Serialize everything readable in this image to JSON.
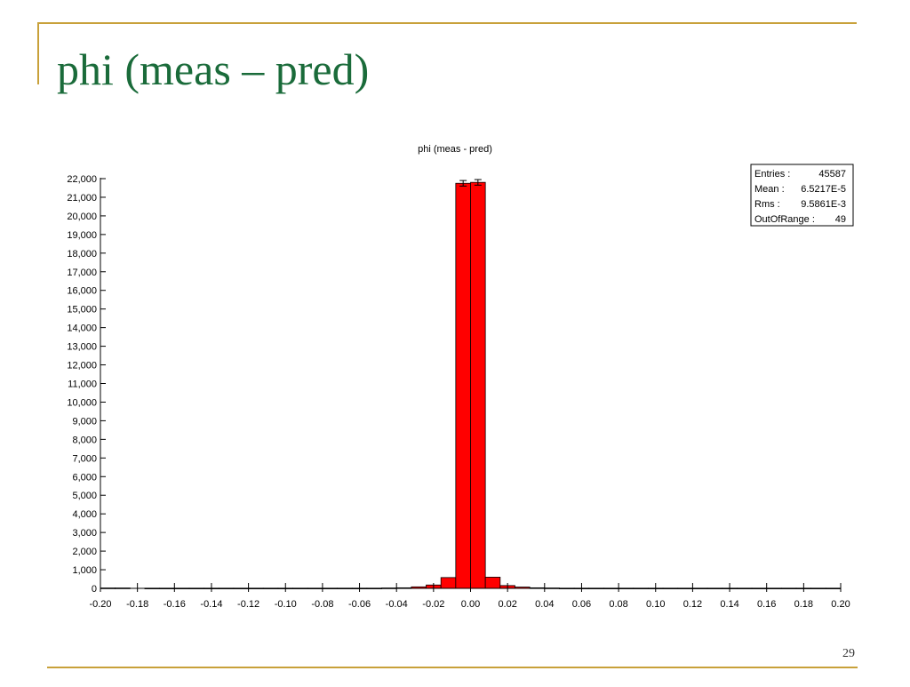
{
  "slide": {
    "title": "phi (meas – pred)",
    "page_number": "29"
  },
  "colors": {
    "accent": "#c8a13a",
    "title": "#1a6b3a",
    "bar": "#ff0000"
  },
  "chart_data": {
    "type": "bar",
    "title": "phi (meas - pred)",
    "xlabel": "",
    "ylabel": "",
    "xlim": [
      -0.2,
      0.2
    ],
    "ylim": [
      0,
      22000
    ],
    "grid": false,
    "bin_width": 0.008,
    "bins": [
      {
        "x0": -0.2,
        "x1": -0.192,
        "value": 20
      },
      {
        "x0": -0.192,
        "x1": -0.184,
        "value": 20
      },
      {
        "x0": -0.176,
        "x1": -0.168,
        "value": 10
      },
      {
        "x0": -0.168,
        "x1": -0.16,
        "value": 10
      },
      {
        "x0": -0.16,
        "x1": -0.152,
        "value": 10
      },
      {
        "x0": -0.152,
        "x1": -0.144,
        "value": 10
      },
      {
        "x0": -0.144,
        "x1": -0.136,
        "value": 10
      },
      {
        "x0": -0.136,
        "x1": -0.128,
        "value": 10
      },
      {
        "x0": -0.128,
        "x1": -0.12,
        "value": 10
      },
      {
        "x0": -0.12,
        "x1": -0.112,
        "value": 10
      },
      {
        "x0": -0.112,
        "x1": -0.104,
        "value": 10
      },
      {
        "x0": -0.104,
        "x1": -0.096,
        "value": 10
      },
      {
        "x0": -0.096,
        "x1": -0.088,
        "value": 10
      },
      {
        "x0": -0.088,
        "x1": -0.08,
        "value": 10
      },
      {
        "x0": -0.08,
        "x1": -0.072,
        "value": 10
      },
      {
        "x0": -0.072,
        "x1": -0.064,
        "value": 10
      },
      {
        "x0": -0.064,
        "x1": -0.056,
        "value": 10
      },
      {
        "x0": -0.056,
        "x1": -0.048,
        "value": 10
      },
      {
        "x0": -0.048,
        "x1": -0.04,
        "value": 20
      },
      {
        "x0": -0.04,
        "x1": -0.032,
        "value": 30
      },
      {
        "x0": -0.032,
        "x1": -0.024,
        "value": 80
      },
      {
        "x0": -0.024,
        "x1": -0.016,
        "value": 180
      },
      {
        "x0": -0.016,
        "x1": -0.008,
        "value": 580
      },
      {
        "x0": -0.008,
        "x1": 0.0,
        "value": 21750
      },
      {
        "x0": 0.0,
        "x1": 0.008,
        "value": 21800
      },
      {
        "x0": 0.008,
        "x1": 0.016,
        "value": 600
      },
      {
        "x0": 0.016,
        "x1": 0.024,
        "value": 150
      },
      {
        "x0": 0.024,
        "x1": 0.032,
        "value": 70
      },
      {
        "x0": 0.032,
        "x1": 0.04,
        "value": 30
      },
      {
        "x0": 0.04,
        "x1": 0.048,
        "value": 20
      },
      {
        "x0": 0.048,
        "x1": 0.056,
        "value": 10
      },
      {
        "x0": 0.056,
        "x1": 0.064,
        "value": 10
      },
      {
        "x0": 0.064,
        "x1": 0.072,
        "value": 10
      },
      {
        "x0": 0.072,
        "x1": 0.08,
        "value": 10
      },
      {
        "x0": 0.08,
        "x1": 0.088,
        "value": 10
      },
      {
        "x0": 0.088,
        "x1": 0.096,
        "value": 10
      },
      {
        "x0": 0.096,
        "x1": 0.104,
        "value": 10
      },
      {
        "x0": 0.104,
        "x1": 0.112,
        "value": 10
      },
      {
        "x0": 0.112,
        "x1": 0.12,
        "value": 10
      },
      {
        "x0": 0.12,
        "x1": 0.128,
        "value": 10
      },
      {
        "x0": 0.128,
        "x1": 0.136,
        "value": 10
      },
      {
        "x0": 0.136,
        "x1": 0.144,
        "value": 10
      },
      {
        "x0": 0.144,
        "x1": 0.152,
        "value": 10
      },
      {
        "x0": 0.152,
        "x1": 0.16,
        "value": 10
      },
      {
        "x0": 0.16,
        "x1": 0.168,
        "value": 10
      },
      {
        "x0": 0.168,
        "x1": 0.176,
        "value": 10
      },
      {
        "x0": 0.176,
        "x1": 0.184,
        "value": 10
      },
      {
        "x0": 0.184,
        "x1": 0.192,
        "value": 10
      },
      {
        "x0": 0.192,
        "x1": 0.2,
        "value": 10
      }
    ],
    "error_bars": [
      {
        "x": -0.004,
        "value": 21750,
        "err": 150
      },
      {
        "x": 0.004,
        "value": 21800,
        "err": 150
      }
    ],
    "x_ticks": [
      "-0.20",
      "-0.18",
      "-0.16",
      "-0.14",
      "-0.12",
      "-0.10",
      "-0.08",
      "-0.06",
      "-0.04",
      "-0.02",
      "0.00",
      "0.02",
      "0.04",
      "0.06",
      "0.08",
      "0.10",
      "0.12",
      "0.14",
      "0.16",
      "0.18",
      "0.20"
    ],
    "y_ticks": [
      "0",
      "1,000",
      "2,000",
      "3,000",
      "4,000",
      "5,000",
      "6,000",
      "7,000",
      "8,000",
      "9,000",
      "10,000",
      "11,000",
      "12,000",
      "13,000",
      "14,000",
      "15,000",
      "16,000",
      "17,000",
      "18,000",
      "19,000",
      "20,000",
      "21,000",
      "22,000"
    ],
    "stats_box": {
      "entries_label": "Entries :",
      "entries_value": "45587",
      "mean_label": "Mean :",
      "mean_value": "6.5217E-5",
      "rms_label": "Rms :",
      "rms_value": "9.5861E-3",
      "outofrange_label": "OutOfRange :",
      "outofrange_value": "49"
    },
    "stats_box_position": "top-right"
  }
}
